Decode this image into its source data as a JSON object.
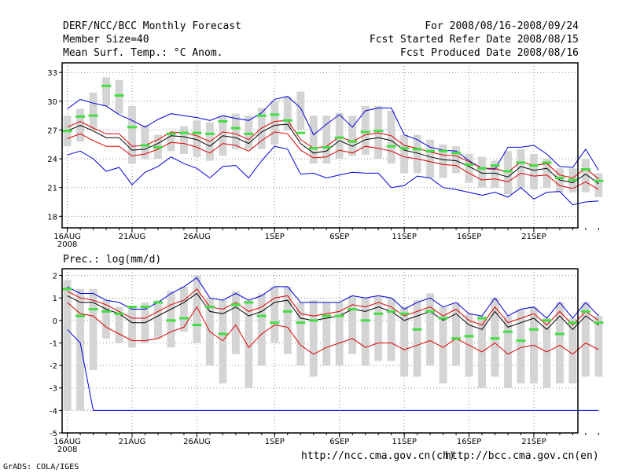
{
  "header": {
    "title": "DERF/NCC/BCC Monthly Forecast",
    "member_size": "Member Size=40",
    "variable": "Mean Surf. Temp.: °C Anom.",
    "period": "For 2008/08/16-2008/09/24",
    "started": "Fcst Started Refer Date 2008/08/15",
    "produced": "Fcst Produced Date 2008/08/16"
  },
  "footer": {
    "url_ch": "http://ncc.cma.gov.cn(ch)",
    "url_en": "http://bcc.cma.gov.cn(en)",
    "grads": "GrADS: COLA/IGES"
  },
  "chart_data": [
    {
      "type": "line",
      "title": "Mean Surf. Temp.: °C Anom.",
      "x_ticks": [
        {
          "day": 1,
          "label": "16AUG",
          "sub": "2008"
        },
        {
          "day": 6,
          "label": "21AUG"
        },
        {
          "day": 11,
          "label": "26AUG"
        },
        {
          "day": 17,
          "label": "1SEP"
        },
        {
          "day": 22,
          "label": "6SEP"
        },
        {
          "day": 27,
          "label": "11SEP"
        },
        {
          "day": 32,
          "label": "16SEP"
        },
        {
          "day": 37,
          "label": "21SEP"
        }
      ],
      "xlim": [
        0.6,
        40.4
      ],
      "ylim": [
        16.8,
        34
      ],
      "y_ticks": [
        18,
        21,
        24,
        27,
        30,
        33
      ],
      "grid": true,
      "series": [
        {
          "name": "ensemble max",
          "color": "#0000dd",
          "values": [
            29.2,
            30.2,
            29.8,
            29.5,
            28.6,
            28.0,
            27.3,
            28.1,
            28.7,
            28.5,
            28.3,
            28.0,
            28.5,
            28.2,
            28.0,
            28.8,
            30.2,
            30.5,
            29.3,
            26.5,
            27.6,
            28.6,
            27.3,
            29.0,
            29.3,
            29.3,
            26.5,
            26.0,
            25.2,
            24.9,
            24.8,
            23.8,
            23.0,
            22.9,
            25.2,
            25.2,
            25.4,
            24.5,
            23.2,
            23.1,
            25.0,
            22.8
          ]
        },
        {
          "name": "upper percentile",
          "color": "#dd0000",
          "values": [
            27.3,
            27.9,
            27.2,
            26.6,
            26.6,
            25.3,
            25.4,
            26.0,
            26.8,
            26.7,
            26.4,
            25.8,
            26.8,
            26.6,
            26.0,
            27.2,
            27.9,
            28.0,
            26.0,
            25.1,
            25.3,
            26.3,
            25.8,
            26.5,
            26.7,
            26.4,
            25.4,
            25.1,
            24.7,
            24.4,
            24.3,
            23.7,
            23.0,
            23.0,
            22.6,
            23.7,
            23.3,
            23.5,
            22.3,
            22.0,
            23.0,
            21.9
          ]
        },
        {
          "name": "ensemble mean",
          "color": "#000000",
          "values": [
            26.9,
            27.5,
            26.9,
            26.2,
            26.2,
            24.9,
            25.0,
            25.6,
            26.4,
            26.3,
            26.0,
            25.3,
            26.4,
            26.2,
            25.6,
            26.8,
            27.5,
            27.6,
            25.6,
            24.6,
            24.8,
            25.9,
            25.3,
            26.0,
            26.2,
            25.9,
            24.9,
            24.6,
            24.2,
            23.9,
            23.8,
            23.2,
            22.5,
            22.5,
            22.1,
            23.2,
            22.8,
            23.0,
            21.8,
            21.5,
            22.4,
            21.4
          ]
        },
        {
          "name": "lower percentile",
          "color": "#dd0000",
          "values": [
            26.1,
            26.6,
            25.9,
            25.3,
            25.3,
            24.3,
            24.5,
            25.0,
            25.7,
            25.6,
            25.2,
            24.6,
            25.6,
            25.4,
            24.8,
            25.9,
            26.8,
            26.6,
            24.9,
            24.1,
            24.2,
            24.9,
            24.6,
            25.3,
            25.1,
            24.8,
            24.2,
            24.0,
            23.7,
            23.4,
            23.3,
            22.5,
            21.8,
            21.9,
            21.6,
            22.5,
            22.2,
            22.3,
            21.2,
            20.9,
            21.6,
            20.8
          ]
        },
        {
          "name": "ensemble min",
          "color": "#0000dd",
          "values": [
            24.4,
            24.8,
            24.0,
            22.7,
            23.1,
            21.3,
            22.6,
            23.2,
            24.2,
            23.5,
            23.0,
            22.0,
            23.2,
            23.3,
            22.0,
            23.8,
            25.3,
            25.0,
            22.4,
            22.5,
            22.0,
            22.3,
            22.6,
            22.5,
            22.5,
            21.0,
            21.2,
            22.2,
            22.0,
            21.0,
            20.8,
            20.5,
            20.2,
            20.5,
            20.0,
            21.0,
            19.8,
            20.5,
            20.6,
            19.2,
            19.5,
            19.6
          ]
        }
      ],
      "boxes": {
        "low": [
          25.3,
          25.8,
          27.0,
          29.5,
          28.7,
          23.5,
          24.0,
          24.0,
          24.8,
          24.5,
          24.2,
          23.8,
          24.3,
          25.0,
          25.0,
          25.0,
          25.5,
          27.0,
          27.0,
          23.5,
          23.5,
          24.0,
          24.3,
          24.4,
          24.0,
          23.5,
          22.5,
          22.5,
          22.0,
          22.0,
          22.5,
          21.5,
          21.0,
          21.0,
          20.3,
          21.0,
          20.8,
          21.0,
          20.5,
          20.5,
          20.5,
          20.0
        ],
        "high": [
          28.5,
          29.2,
          30.9,
          32.5,
          32.2,
          29.5,
          27.5,
          26.5,
          26.5,
          27.4,
          28.0,
          27.8,
          28.5,
          28.7,
          28.5,
          29.3,
          30.0,
          30.5,
          31.0,
          28.5,
          28.5,
          28.8,
          28.5,
          29.5,
          29.5,
          29.0,
          26.5,
          26.5,
          26.0,
          25.5,
          25.3,
          24.5,
          24.2,
          23.8,
          24.8,
          25.0,
          24.5,
          24.0,
          23.0,
          23.0,
          24.0,
          22.5
        ]
      },
      "markers": {
        "name": "observed",
        "color": "#44dd44",
        "values": [
          26.9,
          28.4,
          28.5,
          31.6,
          30.6,
          27.3,
          25.4,
          25.2,
          26.6,
          26.7,
          26.7,
          26.6,
          27.9,
          27.2,
          26.6,
          28.5,
          28.6,
          28.0,
          26.7,
          25.1,
          25.2,
          26.2,
          25.8,
          26.8,
          26.9,
          25.3,
          25.1,
          25.0,
          24.8,
          24.8,
          24.6,
          23.4,
          23.0,
          23.3,
          22.7,
          23.6,
          23.3,
          23.6,
          22.0,
          21.8,
          22.9,
          21.7
        ]
      }
    },
    {
      "type": "line",
      "title": "Prec.: log(mm/d)",
      "x_ticks": [
        {
          "day": 1,
          "label": "16AUG",
          "sub": "2008"
        },
        {
          "day": 6,
          "label": "21AUG"
        },
        {
          "day": 11,
          "label": "26AUG"
        },
        {
          "day": 17,
          "label": "1SEP"
        },
        {
          "day": 22,
          "label": "6SEP"
        },
        {
          "day": 27,
          "label": "11SEP"
        },
        {
          "day": 32,
          "label": "16SEP"
        },
        {
          "day": 37,
          "label": "21SEP"
        }
      ],
      "xlim": [
        0.6,
        40.4
      ],
      "ylim": [
        -5,
        2.3
      ],
      "y_ticks": [
        -5,
        -4,
        -3,
        -2,
        -1,
        0,
        1,
        2
      ],
      "grid": true,
      "series": [
        {
          "name": "ensemble max",
          "color": "#0000dd",
          "values": [
            1.5,
            1.2,
            1.2,
            0.9,
            0.8,
            0.5,
            0.5,
            0.8,
            1.2,
            1.5,
            1.9,
            1.0,
            0.9,
            1.2,
            0.9,
            1.1,
            1.5,
            1.5,
            0.8,
            0.8,
            0.8,
            0.8,
            1.1,
            1.0,
            1.1,
            1.0,
            0.5,
            0.8,
            1.0,
            0.6,
            0.8,
            0.3,
            0.2,
            1.0,
            0.2,
            0.5,
            0.6,
            0.1,
            0.8,
            0.1,
            0.8,
            0.2
          ]
        },
        {
          "name": "upper percentile",
          "color": "#dd0000",
          "values": [
            1.3,
            1.0,
            0.9,
            0.7,
            0.4,
            0.1,
            0.1,
            0.4,
            0.7,
            0.9,
            1.4,
            0.6,
            0.5,
            0.8,
            0.4,
            0.6,
            1.0,
            1.1,
            0.3,
            0.2,
            0.3,
            0.4,
            0.7,
            0.6,
            0.8,
            0.6,
            0.2,
            0.4,
            0.6,
            0.2,
            0.5,
            0.0,
            -0.2,
            0.6,
            -0.1,
            0.1,
            0.3,
            -0.2,
            0.4,
            -0.2,
            0.4,
            0.0
          ]
        },
        {
          "name": "ensemble mean",
          "color": "#000000",
          "values": [
            1.1,
            0.8,
            0.8,
            0.5,
            0.3,
            -0.1,
            -0.1,
            0.2,
            0.5,
            0.8,
            1.2,
            0.4,
            0.3,
            0.6,
            0.2,
            0.4,
            0.8,
            0.9,
            0.1,
            0.0,
            0.1,
            0.2,
            0.5,
            0.4,
            0.6,
            0.4,
            0.0,
            0.2,
            0.4,
            0.0,
            0.3,
            -0.2,
            -0.4,
            0.4,
            -0.3,
            -0.1,
            0.1,
            -0.4,
            0.2,
            -0.4,
            0.2,
            -0.2
          ]
        },
        {
          "name": "lower percentile",
          "color": "#dd0000",
          "values": [
            0.8,
            0.3,
            0.2,
            -0.3,
            -0.6,
            -0.9,
            -0.9,
            -0.8,
            -0.5,
            -0.3,
            0.6,
            -0.5,
            -0.9,
            -0.2,
            -1.2,
            -0.6,
            -0.2,
            -0.3,
            -1.1,
            -1.5,
            -1.2,
            -1.0,
            -0.8,
            -1.2,
            -1.0,
            -1.0,
            -1.3,
            -1.1,
            -0.9,
            -1.2,
            -0.8,
            -1.1,
            -1.4,
            -1.0,
            -1.5,
            -1.2,
            -1.1,
            -1.4,
            -1.1,
            -1.5,
            -1.0,
            -1.3
          ]
        },
        {
          "name": "ensemble min",
          "color": "#0000dd",
          "values": [
            -0.4,
            -1.0,
            -4.0,
            -4.0,
            -4.0,
            -4.0,
            -4.0,
            -4.0,
            -4.0,
            -4.0,
            -4.0,
            -4.0,
            -4.0,
            -4.0,
            -4.0,
            -4.0,
            -4.0,
            -4.0,
            -4.0,
            -4.0,
            -4.0,
            -4.0,
            -4.0,
            -4.0,
            -4.0,
            -4.0,
            -4.0,
            -4.0,
            -4.0,
            -4.0,
            -4.0,
            -4.0,
            -4.0,
            -4.0,
            -4.0,
            -4.0,
            -4.0,
            -4.0,
            -4.0,
            -4.0,
            -4.0,
            -4.0
          ]
        }
      ],
      "boxes": {
        "low": [
          -4.0,
          -4.0,
          -2.2,
          -0.8,
          -1.0,
          -1.2,
          -1.0,
          -0.8,
          -1.2,
          -0.5,
          -1.0,
          -2.0,
          -2.8,
          -1.5,
          -3.0,
          -2.0,
          -1.0,
          -1.5,
          -2.0,
          -2.5,
          -2.0,
          -2.0,
          -1.5,
          -2.0,
          -1.8,
          -1.8,
          -2.5,
          -2.5,
          -2.0,
          -2.8,
          -2.0,
          -2.5,
          -3.0,
          -2.5,
          -3.0,
          -2.8,
          -2.8,
          -3.0,
          -2.8,
          -2.8,
          -2.5,
          -2.5
        ],
        "high": [
          1.8,
          1.4,
          1.4,
          0.9,
          0.6,
          0.6,
          0.8,
          0.9,
          1.3,
          1.5,
          2.0,
          1.0,
          0.9,
          1.3,
          0.9,
          1.2,
          1.5,
          1.5,
          0.8,
          0.9,
          0.8,
          0.8,
          1.1,
          1.0,
          1.1,
          1.0,
          0.6,
          0.9,
          1.2,
          0.6,
          0.8,
          0.3,
          0.2,
          1.0,
          0.2,
          0.5,
          0.6,
          0.1,
          0.8,
          0.1,
          0.8,
          0.2
        ]
      },
      "markers": {
        "name": "observed",
        "color": "#44dd44",
        "values": [
          1.4,
          0.2,
          0.5,
          0.4,
          0.3,
          0.6,
          0.6,
          0.8,
          0.0,
          0.1,
          -0.2,
          0.6,
          -0.6,
          0.7,
          0.8,
          0.2,
          -0.1,
          0.4,
          -0.1,
          0.0,
          0.2,
          0.2,
          0.5,
          0.0,
          0.3,
          0.4,
          0.3,
          -0.4,
          0.4,
          0.1,
          -0.8,
          -0.7,
          0.1,
          -0.8,
          -0.5,
          -0.9,
          -0.4,
          0.0,
          -0.6,
          -0.1,
          0.4,
          -0.1
        ]
      }
    }
  ]
}
